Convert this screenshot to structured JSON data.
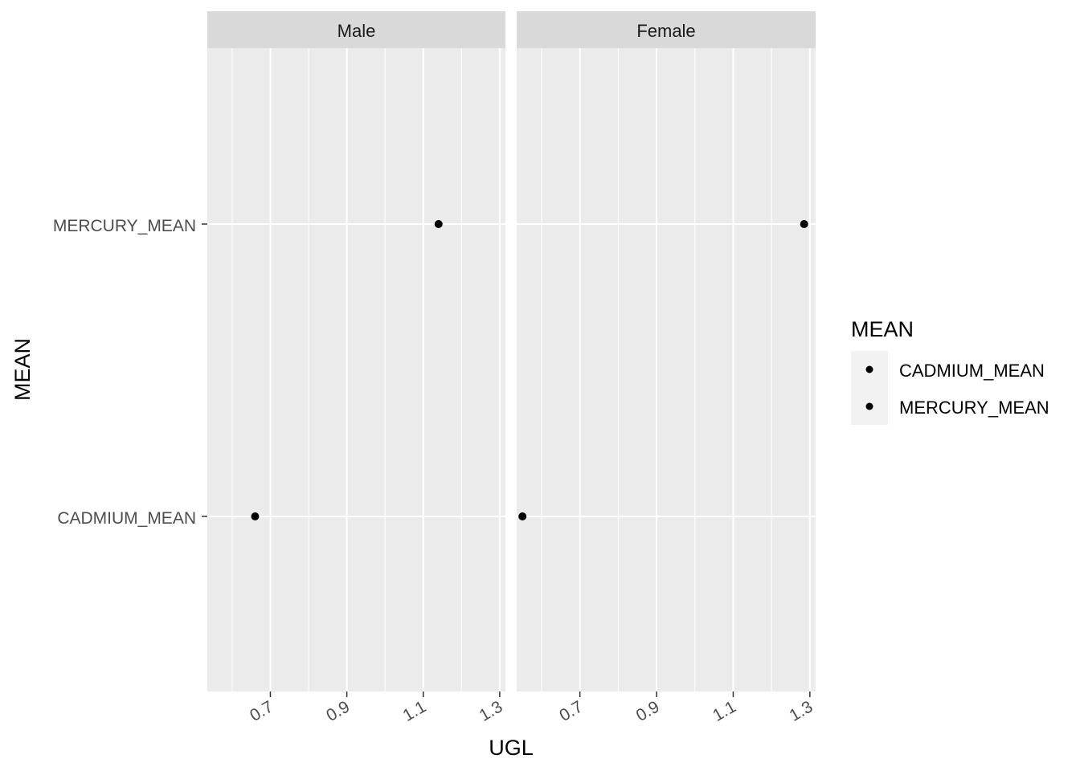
{
  "chart_data": {
    "type": "scatter",
    "xlabel": "UGL",
    "ylabel": "MEAN",
    "xlim": [
      0.535,
      1.315
    ],
    "x_ticks": [
      "0.7",
      "0.9",
      "1.1",
      "1.3"
    ],
    "y_categories": [
      "CADMIUM_MEAN",
      "MERCURY_MEAN"
    ],
    "grid": true,
    "legend": {
      "title": "MEAN",
      "placement": "right",
      "entries": [
        "CADMIUM_MEAN",
        "MERCURY_MEAN"
      ],
      "colors": [
        "#000000",
        "#000000"
      ]
    },
    "facets": [
      {
        "label": "Male",
        "points": [
          {
            "series": "MERCURY_MEAN",
            "x": 1.14,
            "y": "MERCURY_MEAN"
          },
          {
            "series": "CADMIUM_MEAN",
            "x": 0.66,
            "y": "CADMIUM_MEAN"
          }
        ]
      },
      {
        "label": "Female",
        "points": [
          {
            "series": "MERCURY_MEAN",
            "x": 1.285,
            "y": "MERCURY_MEAN"
          },
          {
            "series": "CADMIUM_MEAN",
            "x": 0.55,
            "y": "CADMIUM_MEAN"
          }
        ]
      }
    ],
    "colors": {
      "panel_bg": "#ebebeb",
      "strip_bg": "#d9d9d9",
      "grid": "#ffffff",
      "point": "#000000"
    }
  }
}
